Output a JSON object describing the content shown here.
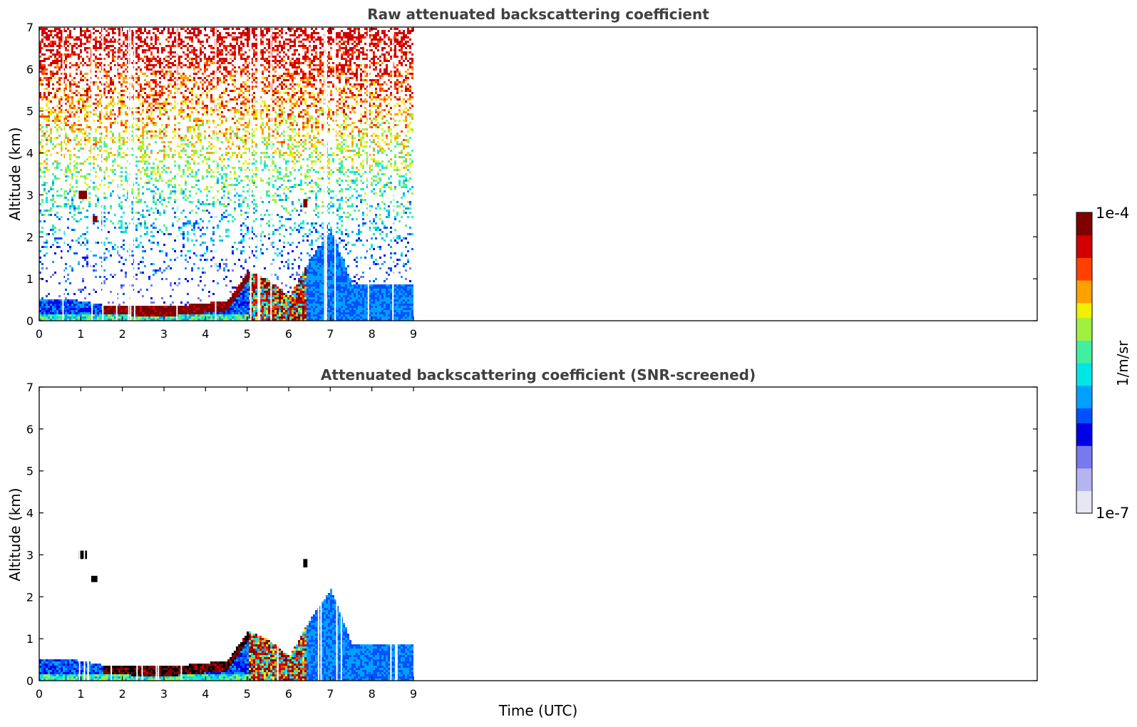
{
  "chart_data": [
    {
      "type": "heatmap",
      "title": "Raw attenuated backscattering coefficient",
      "xlabel": "",
      "ylabel": "Altitude (km)",
      "xlim": [
        0,
        24
      ],
      "ylim": [
        0,
        7
      ],
      "x_ticks": [
        "0",
        "1",
        "2",
        "3",
        "4",
        "5",
        "6",
        "7",
        "8",
        "9"
      ],
      "y_ticks": [
        "0",
        "1",
        "2",
        "3",
        "4",
        "5",
        "6",
        "7"
      ],
      "data_extent_x": [
        0,
        9
      ],
      "features": [
        {
          "kind": "boundary-layer-top",
          "x": [
            0,
            0.5,
            1,
            1.5,
            2,
            2.5,
            3,
            3.5,
            4,
            4.5,
            5,
            5.5,
            6,
            6.5,
            7,
            7.5,
            8,
            8.5,
            9
          ],
          "y": [
            0.55,
            0.55,
            0.5,
            0.4,
            0.4,
            0.38,
            0.38,
            0.4,
            0.45,
            0.5,
            1.2,
            1.0,
            0.6,
            1.5,
            2.2,
            0.9,
            0.9,
            0.9,
            0.9
          ]
        },
        {
          "kind": "cloud",
          "x": [
            0.95,
            1.15
          ],
          "y": [
            2.9,
            3.1
          ]
        },
        {
          "kind": "cloud",
          "x": [
            1.25,
            1.4
          ],
          "y": [
            2.35,
            2.5
          ]
        },
        {
          "kind": "cloud",
          "x": [
            6.35,
            6.45
          ],
          "y": [
            2.7,
            2.9
          ]
        }
      ]
    },
    {
      "type": "heatmap",
      "title": "Attenuated backscattering coefficient (SNR-screened)",
      "xlabel": "Time (UTC)",
      "ylabel": "Altitude (km)",
      "xlim": [
        0,
        24
      ],
      "ylim": [
        0,
        7
      ],
      "x_ticks": [
        "0",
        "1",
        "2",
        "3",
        "4",
        "5",
        "6",
        "7",
        "8",
        "9"
      ],
      "y_ticks": [
        "0",
        "1",
        "2",
        "3",
        "4",
        "5",
        "6",
        "7"
      ],
      "data_extent_x": [
        0,
        9
      ]
    }
  ],
  "colorbar": {
    "label": "1/m/sr",
    "max_label": "1e-4",
    "min_label": "1e-7",
    "scale": "log",
    "colors": [
      "#e6e6f5",
      "#b4b4f0",
      "#7878f0",
      "#0000e6",
      "#0050ff",
      "#00a0ff",
      "#00e6e6",
      "#40f0a0",
      "#a0f040",
      "#f0f000",
      "#ffa000",
      "#ff4000",
      "#d00000",
      "#800000"
    ]
  }
}
